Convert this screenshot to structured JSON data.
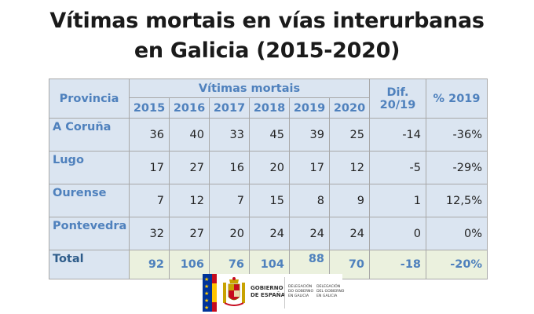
{
  "title": {
    "line1": "Vítimas mortais en vías interurbanas",
    "line2": "en Galicia (2015-2020)"
  },
  "table": {
    "header_province": "Provincia",
    "header_group": "Vítimas mortais",
    "years": [
      "2015",
      "2016",
      "2017",
      "2018",
      "2019",
      "2020"
    ],
    "header_dif_line1": "Dif.",
    "header_dif_line2": "20/19",
    "header_pct": "% 2019",
    "rows": [
      {
        "province": "A Coruña",
        "values": [
          "36",
          "40",
          "33",
          "45",
          "39",
          "25"
        ],
        "dif": "-14",
        "pct": "-36%"
      },
      {
        "province": "Lugo",
        "values": [
          "17",
          "27",
          "16",
          "20",
          "17",
          "12"
        ],
        "dif": "-5",
        "pct": "-29%"
      },
      {
        "province": "Ourense",
        "values": [
          "7",
          "12",
          "7",
          "15",
          "8",
          "9"
        ],
        "dif": "1",
        "pct": "12,5%"
      },
      {
        "province": "Pontevedra",
        "values": [
          "32",
          "27",
          "20",
          "24",
          "24",
          "24"
        ],
        "dif": "0",
        "pct": "0%"
      }
    ],
    "total": {
      "label": "Total",
      "values": [
        "92",
        "106",
        "76",
        "104",
        "88",
        "70"
      ],
      "dif": "-18",
      "pct": "-20%"
    }
  },
  "logo": {
    "gob_line1": "GOBIERNO",
    "gob_line2": "DE ESPAÑA",
    "deleg_col1": [
      "DELEGACIÓN",
      "DO GOBERNO",
      "EN GALICIA"
    ],
    "deleg_col2": [
      "DELEGACIÓN",
      "DEL GOBIERNO",
      "EN GALICIA"
    ]
  },
  "colors": {
    "header_text": "#4f81bd",
    "cell_bg": "#dbe5f1",
    "total_bg": "#ebf1de"
  }
}
